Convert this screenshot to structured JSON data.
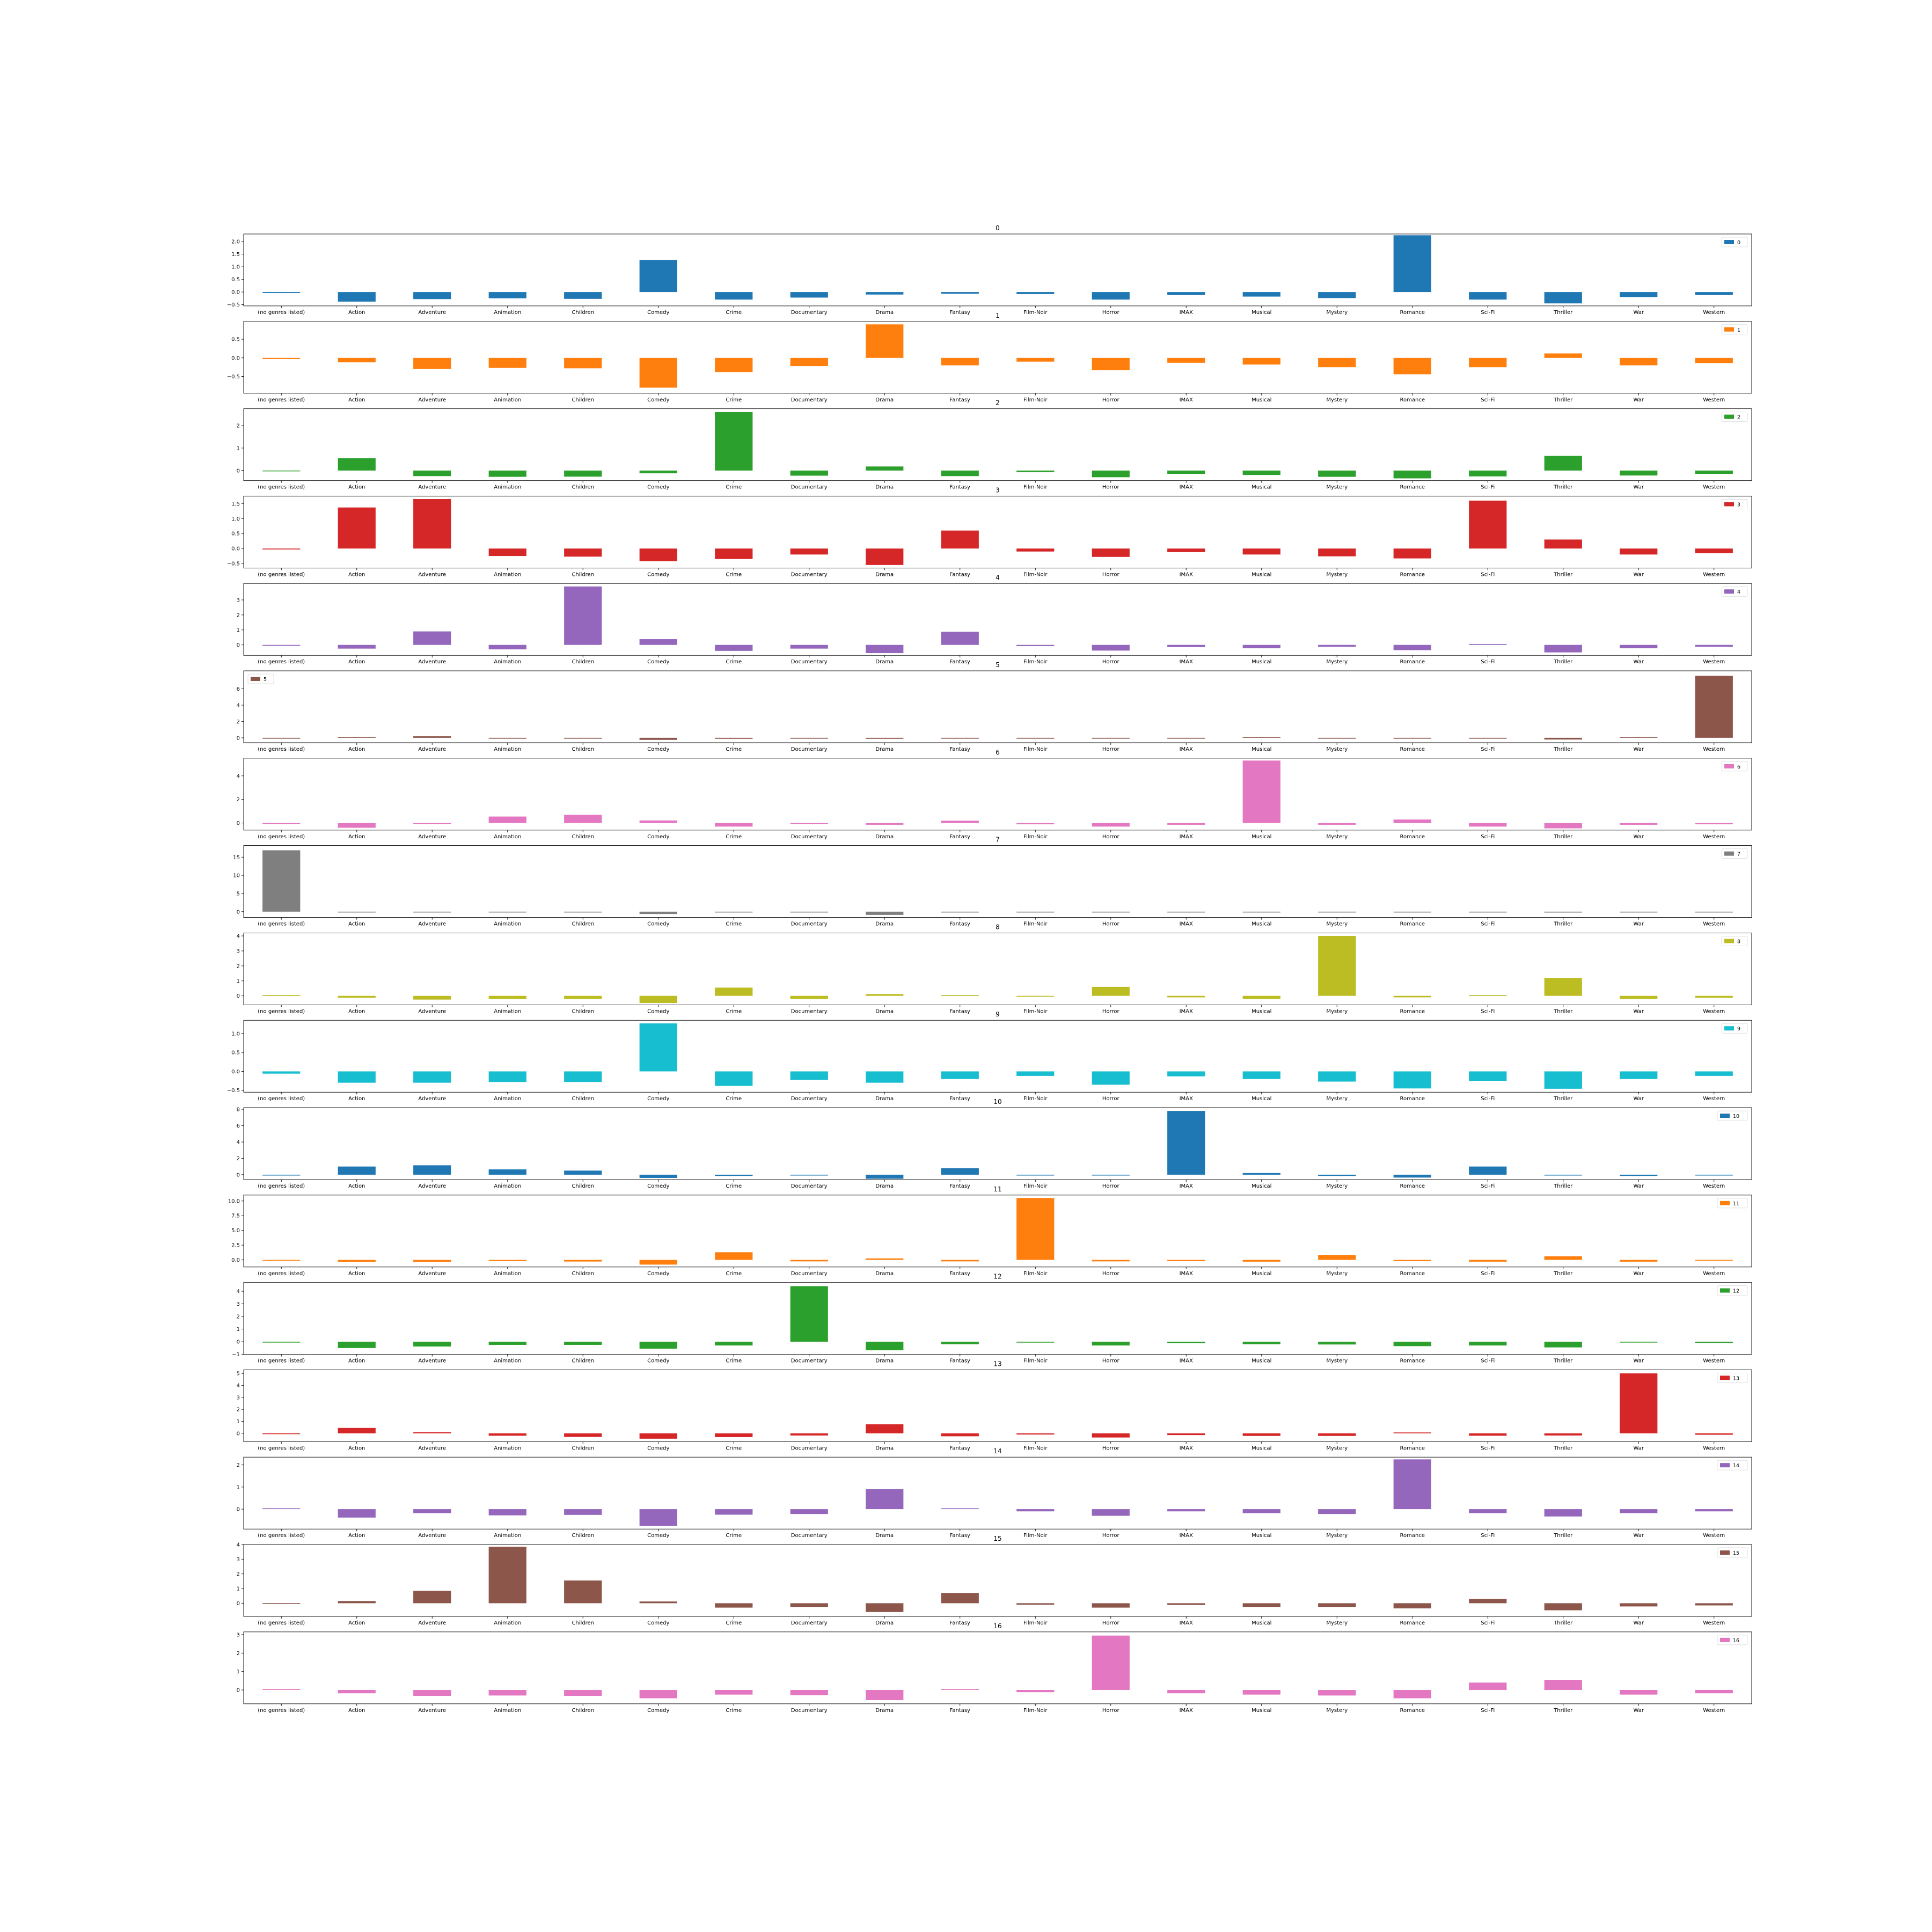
{
  "figure": {
    "categories": [
      "(no genres listed)",
      "Action",
      "Adventure",
      "Animation",
      "Children",
      "Comedy",
      "Crime",
      "Documentary",
      "Drama",
      "Fantasy",
      "Film-Noir",
      "Horror",
      "IMAX",
      "Musical",
      "Mystery",
      "Romance",
      "Sci-Fi",
      "Thriller",
      "War",
      "Western"
    ]
  },
  "chart_data": [
    {
      "type": "bar",
      "title": "0",
      "color": "#1f77b4",
      "legend": {
        "label": "0",
        "position": "upper right"
      },
      "ylim": [
        -0.55,
        2.3
      ],
      "yticks": [
        -0.5,
        0,
        0.5,
        1,
        1.5,
        2
      ],
      "ytick_labels": [
        "−0.5",
        "0.0",
        "0.5",
        "1.0",
        "1.5",
        "2.0"
      ],
      "values": [
        -0.04,
        -0.38,
        -0.28,
        -0.25,
        -0.27,
        1.27,
        -0.3,
        -0.22,
        -0.1,
        -0.07,
        -0.08,
        -0.3,
        -0.12,
        -0.18,
        -0.24,
        2.25,
        -0.3,
        -0.45,
        -0.2,
        -0.12
      ]
    },
    {
      "type": "bar",
      "title": "1",
      "color": "#ff7f0e",
      "legend": {
        "label": "1",
        "position": "upper right"
      },
      "ylim": [
        -0.95,
        0.98
      ],
      "yticks": [
        -0.5,
        0,
        0.5
      ],
      "ytick_labels": [
        "−0.5",
        "0.0",
        "0.5"
      ],
      "values": [
        -0.03,
        -0.12,
        -0.3,
        -0.27,
        -0.28,
        -0.8,
        -0.38,
        -0.22,
        0.9,
        -0.2,
        -0.1,
        -0.33,
        -0.13,
        -0.18,
        -0.25,
        -0.44,
        -0.25,
        0.12,
        -0.2,
        -0.14
      ]
    },
    {
      "type": "bar",
      "title": "2",
      "color": "#2ca02c",
      "legend": {
        "label": "2",
        "position": "upper right"
      },
      "ylim": [
        -0.45,
        2.75
      ],
      "yticks": [
        0,
        1,
        2
      ],
      "ytick_labels": [
        "0",
        "1",
        "2"
      ],
      "values": [
        -0.02,
        0.55,
        -0.25,
        -0.28,
        -0.27,
        -0.12,
        2.6,
        -0.23,
        0.18,
        -0.25,
        -0.07,
        -0.3,
        -0.15,
        -0.2,
        -0.28,
        -0.35,
        -0.26,
        0.65,
        -0.22,
        -0.15
      ]
    },
    {
      "type": "bar",
      "title": "3",
      "color": "#d62728",
      "legend": {
        "label": "3",
        "position": "upper right"
      },
      "ylim": [
        -0.65,
        1.75
      ],
      "yticks": [
        -0.5,
        0,
        0.5,
        1,
        1.5
      ],
      "ytick_labels": [
        "−0.5",
        "0.0",
        "0.5",
        "1.0",
        "1.5"
      ],
      "values": [
        -0.03,
        1.37,
        1.65,
        -0.25,
        -0.27,
        -0.42,
        -0.35,
        -0.2,
        -0.55,
        0.6,
        -0.1,
        -0.28,
        -0.12,
        -0.2,
        -0.26,
        -0.33,
        1.6,
        0.3,
        -0.2,
        -0.15
      ]
    },
    {
      "type": "bar",
      "title": "4",
      "color": "#9467bd",
      "legend": {
        "label": "4",
        "position": "upper right"
      },
      "ylim": [
        -0.7,
        4.1
      ],
      "yticks": [
        0,
        1,
        2,
        3
      ],
      "ytick_labels": [
        "0",
        "1",
        "2",
        "3"
      ],
      "values": [
        -0.03,
        -0.25,
        0.9,
        -0.3,
        3.9,
        0.38,
        -0.4,
        -0.25,
        -0.55,
        0.88,
        -0.08,
        -0.38,
        -0.15,
        -0.22,
        -0.12,
        -0.35,
        0.0,
        -0.5,
        -0.22,
        -0.12
      ]
    },
    {
      "type": "bar",
      "title": "5",
      "color": "#8c564b",
      "legend": {
        "label": "5",
        "position": "upper left"
      },
      "ylim": [
        -0.6,
        8.2
      ],
      "yticks": [
        0,
        2,
        4,
        6
      ],
      "ytick_labels": [
        "0",
        "2",
        "4",
        "6"
      ],
      "values": [
        -0.05,
        0.08,
        0.2,
        -0.1,
        -0.1,
        -0.25,
        -0.12,
        -0.1,
        -0.12,
        -0.1,
        -0.05,
        -0.1,
        -0.05,
        0.08,
        -0.1,
        -0.08,
        -0.1,
        -0.2,
        0.05,
        7.6
      ]
    },
    {
      "type": "bar",
      "title": "6",
      "color": "#e377c2",
      "legend": {
        "label": "6",
        "position": "upper right"
      },
      "ylim": [
        -0.6,
        5.5
      ],
      "yticks": [
        0,
        2,
        4
      ],
      "ytick_labels": [
        "0",
        "2",
        "4"
      ],
      "values": [
        -0.05,
        -0.4,
        -0.05,
        0.55,
        0.7,
        0.22,
        -0.3,
        -0.05,
        -0.15,
        0.2,
        -0.1,
        -0.3,
        -0.15,
        5.3,
        -0.15,
        0.3,
        -0.3,
        -0.45,
        -0.15,
        -0.1
      ]
    },
    {
      "type": "bar",
      "title": "7",
      "color": "#7f7f7f",
      "legend": {
        "label": "7",
        "position": "upper right"
      },
      "ylim": [
        -1.6,
        18.2
      ],
      "yticks": [
        0,
        5,
        10,
        15
      ],
      "ytick_labels": [
        "0",
        "5",
        "10",
        "15"
      ],
      "values": [
        16.9,
        -0.15,
        -0.1,
        -0.07,
        -0.08,
        -0.65,
        -0.12,
        -0.1,
        -0.9,
        -0.08,
        -0.02,
        -0.1,
        -0.03,
        -0.05,
        -0.07,
        -0.15,
        -0.1,
        -0.25,
        -0.1,
        -0.04
      ]
    },
    {
      "type": "bar",
      "title": "8",
      "color": "#bcbd22",
      "legend": {
        "label": "8",
        "position": "upper right"
      },
      "ylim": [
        -0.6,
        4.2
      ],
      "yticks": [
        0,
        1,
        2,
        3,
        4
      ],
      "ytick_labels": [
        "0",
        "1",
        "2",
        "3",
        "4"
      ],
      "values": [
        0.05,
        -0.12,
        -0.25,
        -0.2,
        -0.2,
        -0.48,
        0.55,
        -0.2,
        0.12,
        0.0,
        -0.05,
        0.6,
        -0.1,
        -0.2,
        4.0,
        -0.1,
        0.05,
        1.2,
        -0.2,
        -0.12
      ]
    },
    {
      "type": "bar",
      "title": "9",
      "color": "#17becf",
      "legend": {
        "label": "9",
        "position": "upper right"
      },
      "ylim": [
        -0.55,
        1.35
      ],
      "yticks": [
        -0.5,
        0,
        0.5,
        1
      ],
      "ytick_labels": [
        "−0.5",
        "0.0",
        "0.5",
        "1.0"
      ],
      "values": [
        -0.06,
        -0.3,
        -0.3,
        -0.28,
        -0.28,
        1.27,
        -0.38,
        -0.22,
        -0.3,
        -0.2,
        -0.12,
        -0.35,
        -0.13,
        -0.2,
        -0.27,
        -0.45,
        -0.25,
        -0.46,
        -0.2,
        -0.12
      ]
    },
    {
      "type": "bar",
      "title": "10",
      "color": "#1f77b4",
      "legend": {
        "label": "10",
        "position": "upper right"
      },
      "ylim": [
        -0.6,
        8.2
      ],
      "yticks": [
        0,
        2,
        4,
        6,
        8
      ],
      "ytick_labels": [
        "0",
        "2",
        "4",
        "6",
        "8"
      ],
      "values": [
        -0.05,
        1.0,
        1.15,
        0.65,
        0.5,
        -0.4,
        -0.15,
        -0.1,
        -0.5,
        0.8,
        -0.08,
        -0.1,
        7.8,
        0.2,
        -0.15,
        -0.35,
        1.0,
        -0.1,
        -0.15,
        -0.05
      ]
    },
    {
      "type": "bar",
      "title": "11",
      "color": "#ff7f0e",
      "legend": {
        "label": "11",
        "position": "upper right"
      },
      "ylim": [
        -1.2,
        11.0
      ],
      "yticks": [
        0,
        2.5,
        5,
        7.5,
        10
      ],
      "ytick_labels": [
        "0.0",
        "2.5",
        "5.0",
        "7.5",
        "10.0"
      ],
      "values": [
        -0.05,
        -0.35,
        -0.35,
        -0.2,
        -0.28,
        -0.8,
        1.3,
        -0.25,
        0.25,
        -0.25,
        10.5,
        -0.25,
        -0.2,
        -0.3,
        0.8,
        -0.2,
        -0.3,
        0.6,
        -0.3,
        -0.1
      ]
    },
    {
      "type": "bar",
      "title": "12",
      "color": "#2ca02c",
      "legend": {
        "label": "12",
        "position": "upper right"
      },
      "ylim": [
        -1.0,
        4.7
      ],
      "yticks": [
        -1,
        0,
        1,
        2,
        3,
        4
      ],
      "ytick_labels": [
        "−1",
        "0",
        "1",
        "2",
        "3",
        "4"
      ],
      "values": [
        -0.03,
        -0.5,
        -0.38,
        -0.25,
        -0.25,
        -0.55,
        -0.3,
        4.4,
        -0.68,
        -0.2,
        -0.07,
        -0.3,
        -0.12,
        -0.2,
        -0.22,
        -0.35,
        -0.3,
        -0.45,
        -0.05,
        -0.1
      ]
    },
    {
      "type": "bar",
      "title": "13",
      "color": "#d62728",
      "legend": {
        "label": "13",
        "position": "upper right"
      },
      "ylim": [
        -0.7,
        5.3
      ],
      "yticks": [
        0,
        1,
        2,
        3,
        4,
        5
      ],
      "ytick_labels": [
        "0",
        "1",
        "2",
        "3",
        "4",
        "5"
      ],
      "values": [
        -0.05,
        0.45,
        0.1,
        -0.2,
        -0.3,
        -0.45,
        -0.32,
        -0.18,
        0.75,
        -0.25,
        -0.1,
        -0.35,
        -0.15,
        -0.22,
        -0.22,
        0.05,
        -0.2,
        -0.18,
        5.0,
        -0.12
      ]
    },
    {
      "type": "bar",
      "title": "14",
      "color": "#9467bd",
      "legend": {
        "label": "14",
        "position": "upper right"
      },
      "ylim": [
        -0.9,
        2.35
      ],
      "yticks": [
        0,
        1,
        2
      ],
      "ytick_labels": [
        "0",
        "1",
        "2"
      ],
      "values": [
        0.03,
        -0.38,
        -0.18,
        -0.28,
        -0.26,
        -0.75,
        -0.25,
        -0.22,
        0.9,
        0.02,
        -0.1,
        -0.3,
        -0.1,
        -0.18,
        -0.22,
        2.25,
        -0.18,
        -0.33,
        -0.18,
        -0.1
      ]
    },
    {
      "type": "bar",
      "title": "15",
      "color": "#8c564b",
      "legend": {
        "label": "15",
        "position": "upper right"
      },
      "ylim": [
        -0.9,
        4.0
      ],
      "yticks": [
        0,
        1,
        2,
        3,
        4
      ],
      "ytick_labels": [
        "0",
        "1",
        "2",
        "3",
        "4"
      ],
      "values": [
        -0.05,
        0.15,
        0.85,
        3.85,
        1.55,
        0.12,
        -0.3,
        -0.25,
        -0.6,
        0.7,
        -0.1,
        -0.3,
        -0.12,
        -0.25,
        -0.25,
        -0.35,
        0.3,
        -0.48,
        -0.22,
        -0.15
      ]
    },
    {
      "type": "bar",
      "title": "16",
      "color": "#e377c2",
      "legend": {
        "label": "16",
        "position": "upper right"
      },
      "ylim": [
        -0.75,
        3.15
      ],
      "yticks": [
        0,
        1,
        2,
        3
      ],
      "ytick_labels": [
        "0",
        "1",
        "2",
        "3"
      ],
      "values": [
        0.03,
        -0.18,
        -0.32,
        -0.3,
        -0.32,
        -0.45,
        -0.25,
        -0.28,
        -0.55,
        0.02,
        -0.12,
        2.95,
        -0.18,
        -0.25,
        -0.3,
        -0.45,
        0.4,
        0.55,
        -0.25,
        -0.18
      ]
    }
  ]
}
